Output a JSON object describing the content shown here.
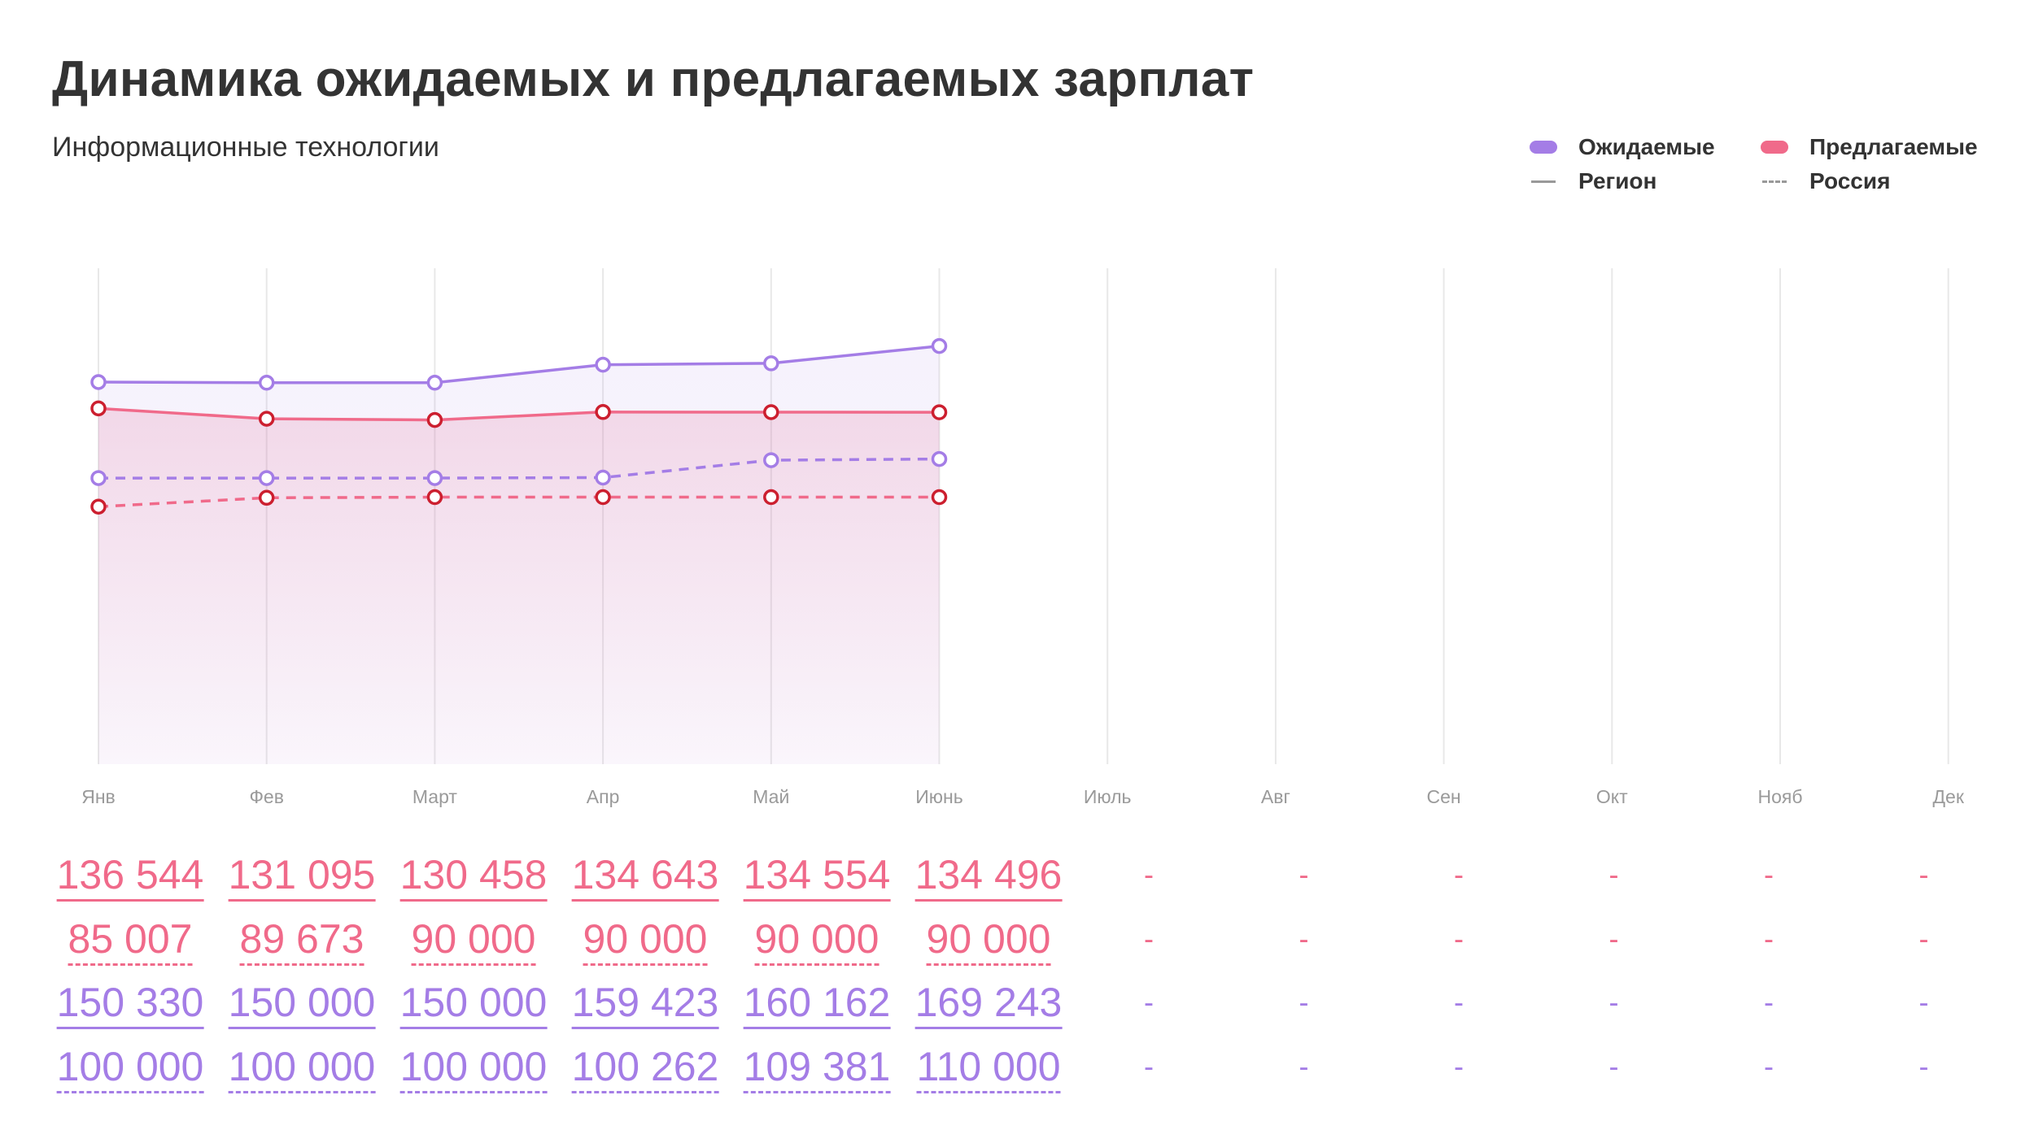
{
  "header": {
    "title": "Динамика ожидаемых и предлагаемых зарплат",
    "subtitle": "Информационные технологии"
  },
  "legend": {
    "expected_label": "Ожидаемые",
    "offered_label": "Предлагаемые",
    "region_label": "Регион",
    "russia_label": "Россия"
  },
  "colors": {
    "expected": "#a47de6",
    "offered": "#f06a8a",
    "offered_marker": "#cc1f2f",
    "grid": "#e8e8e8",
    "axis_text": "#9a9a9a"
  },
  "chart_data": {
    "type": "line",
    "categories": [
      "Янв",
      "Фев",
      "Март",
      "Апр",
      "Май",
      "Июнь",
      "Июль",
      "Авг",
      "Сен",
      "Окт",
      "Нояб",
      "Дек"
    ],
    "series": [
      {
        "name": "Ожидаемые Регион",
        "color_key": "expected",
        "style": "solid",
        "values": [
          150330,
          150000,
          150000,
          159423,
          160162,
          169243,
          null,
          null,
          null,
          null,
          null,
          null
        ]
      },
      {
        "name": "Предлагаемые Регион",
        "color_key": "offered",
        "style": "solid",
        "values": [
          136544,
          131095,
          130458,
          134643,
          134554,
          134496,
          null,
          null,
          null,
          null,
          null,
          null
        ]
      },
      {
        "name": "Ожидаемые Россия",
        "color_key": "expected",
        "style": "dashed",
        "values": [
          100000,
          100000,
          100000,
          100262,
          109381,
          110000,
          null,
          null,
          null,
          null,
          null,
          null
        ]
      },
      {
        "name": "Предлагаемые Россия",
        "color_key": "offered",
        "style": "dashed",
        "values": [
          85007,
          89673,
          90000,
          90000,
          90000,
          90000,
          null,
          null,
          null,
          null,
          null,
          null
        ]
      }
    ],
    "ylim": [
      -50000,
      210000
    ],
    "grid": "vertical",
    "legend_position": "top-right"
  },
  "table": {
    "empty_placeholder": "-",
    "rows": [
      {
        "color_key": "offered",
        "style": "solid",
        "cells": [
          "136 544",
          "131 095",
          "130 458",
          "134 643",
          "134 554",
          "134 496"
        ]
      },
      {
        "color_key": "offered",
        "style": "dashed",
        "cells": [
          "85 007",
          "89 673",
          "90 000",
          "90 000",
          "90 000",
          "90 000"
        ]
      },
      {
        "color_key": "expected",
        "style": "solid",
        "cells": [
          "150 330",
          "150 000",
          "150 000",
          "159 423",
          "160 162",
          "169 243"
        ]
      },
      {
        "color_key": "expected",
        "style": "dashed",
        "cells": [
          "100 000",
          "100 000",
          "100 000",
          "100 262",
          "109 381",
          "110 000"
        ]
      }
    ]
  }
}
